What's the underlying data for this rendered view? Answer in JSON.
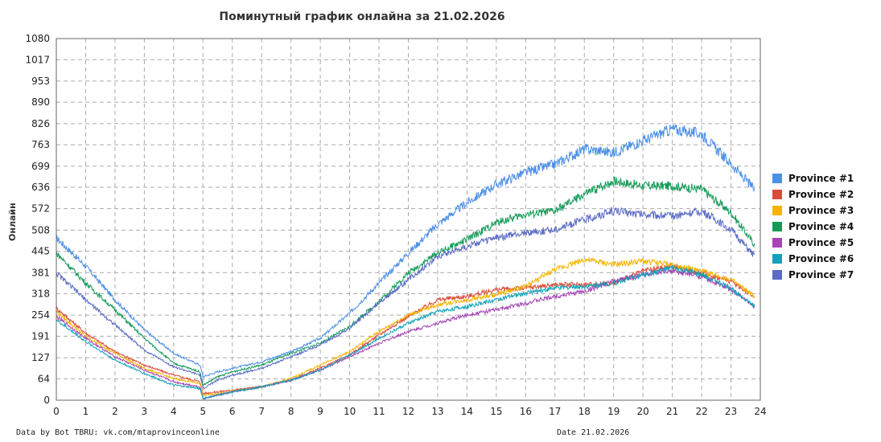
{
  "chart_data": {
    "type": "line",
    "title": "Поминутный график онлайна за 21.02.2026",
    "ylabel": "Онлайн",
    "xlabel": "",
    "x_ticks": [
      0,
      1,
      2,
      3,
      4,
      5,
      6,
      7,
      8,
      9,
      10,
      11,
      12,
      13,
      14,
      15,
      16,
      17,
      18,
      19,
      20,
      21,
      22,
      23,
      24
    ],
    "y_ticks": [
      0,
      64,
      127,
      191,
      254,
      318,
      381,
      445,
      508,
      572,
      636,
      699,
      763,
      826,
      890,
      953,
      1017,
      1080
    ],
    "xlim": [
      0,
      24
    ],
    "ylim": [
      0,
      1080
    ],
    "grid": true,
    "legend_position": "right",
    "x": [
      0,
      1,
      2,
      3,
      4,
      4.9,
      5,
      5.5,
      6,
      7,
      8,
      9,
      10,
      11,
      12,
      13,
      14,
      15,
      16,
      17,
      18,
      19,
      20,
      21,
      22,
      23,
      23.8
    ],
    "series": [
      {
        "name": "Province #1",
        "color": "#4b8fe6",
        "values": [
          485,
          400,
          300,
          210,
          140,
          105,
          70,
          85,
          95,
          115,
          145,
          185,
          260,
          350,
          440,
          525,
          590,
          645,
          680,
          705,
          750,
          740,
          775,
          810,
          795,
          705,
          630
        ]
      },
      {
        "name": "Province #2",
        "color": "#db4b3a",
        "values": [
          275,
          200,
          145,
          105,
          75,
          55,
          20,
          25,
          30,
          40,
          60,
          95,
          135,
          195,
          250,
          300,
          310,
          330,
          335,
          345,
          345,
          350,
          385,
          400,
          380,
          355,
          310
        ]
      },
      {
        "name": "Province #3",
        "color": "#f4b400",
        "values": [
          265,
          190,
          140,
          95,
          65,
          50,
          15,
          20,
          28,
          40,
          65,
          105,
          145,
          205,
          255,
          285,
          300,
          315,
          340,
          390,
          420,
          405,
          415,
          405,
          385,
          360,
          310
        ]
      },
      {
        "name": "Province #4",
        "color": "#149b58",
        "values": [
          440,
          350,
          270,
          185,
          110,
          85,
          45,
          70,
          85,
          105,
          140,
          170,
          220,
          295,
          380,
          440,
          480,
          530,
          555,
          565,
          615,
          655,
          640,
          640,
          630,
          560,
          465
        ]
      },
      {
        "name": "Province #5",
        "color": "#a545b4",
        "values": [
          250,
          185,
          130,
          90,
          55,
          40,
          5,
          15,
          25,
          40,
          60,
          90,
          130,
          170,
          205,
          230,
          255,
          270,
          290,
          310,
          325,
          355,
          375,
          385,
          370,
          330,
          280
        ]
      },
      {
        "name": "Province #6",
        "color": "#13a3b9",
        "values": [
          240,
          175,
          120,
          80,
          45,
          35,
          5,
          15,
          25,
          40,
          60,
          90,
          135,
          185,
          230,
          265,
          280,
          300,
          320,
          335,
          340,
          350,
          375,
          395,
          375,
          335,
          280
        ]
      },
      {
        "name": "Province #7",
        "color": "#5a6bc4",
        "values": [
          380,
          300,
          225,
          150,
          100,
          75,
          35,
          60,
          75,
          95,
          130,
          165,
          215,
          290,
          360,
          430,
          460,
          485,
          500,
          510,
          540,
          565,
          555,
          550,
          565,
          510,
          430
        ]
      }
    ]
  },
  "footer": {
    "left": "Data by Bot TBRU: vk.com/mtaprovinceonline",
    "right": "Date 21.02.2026"
  }
}
